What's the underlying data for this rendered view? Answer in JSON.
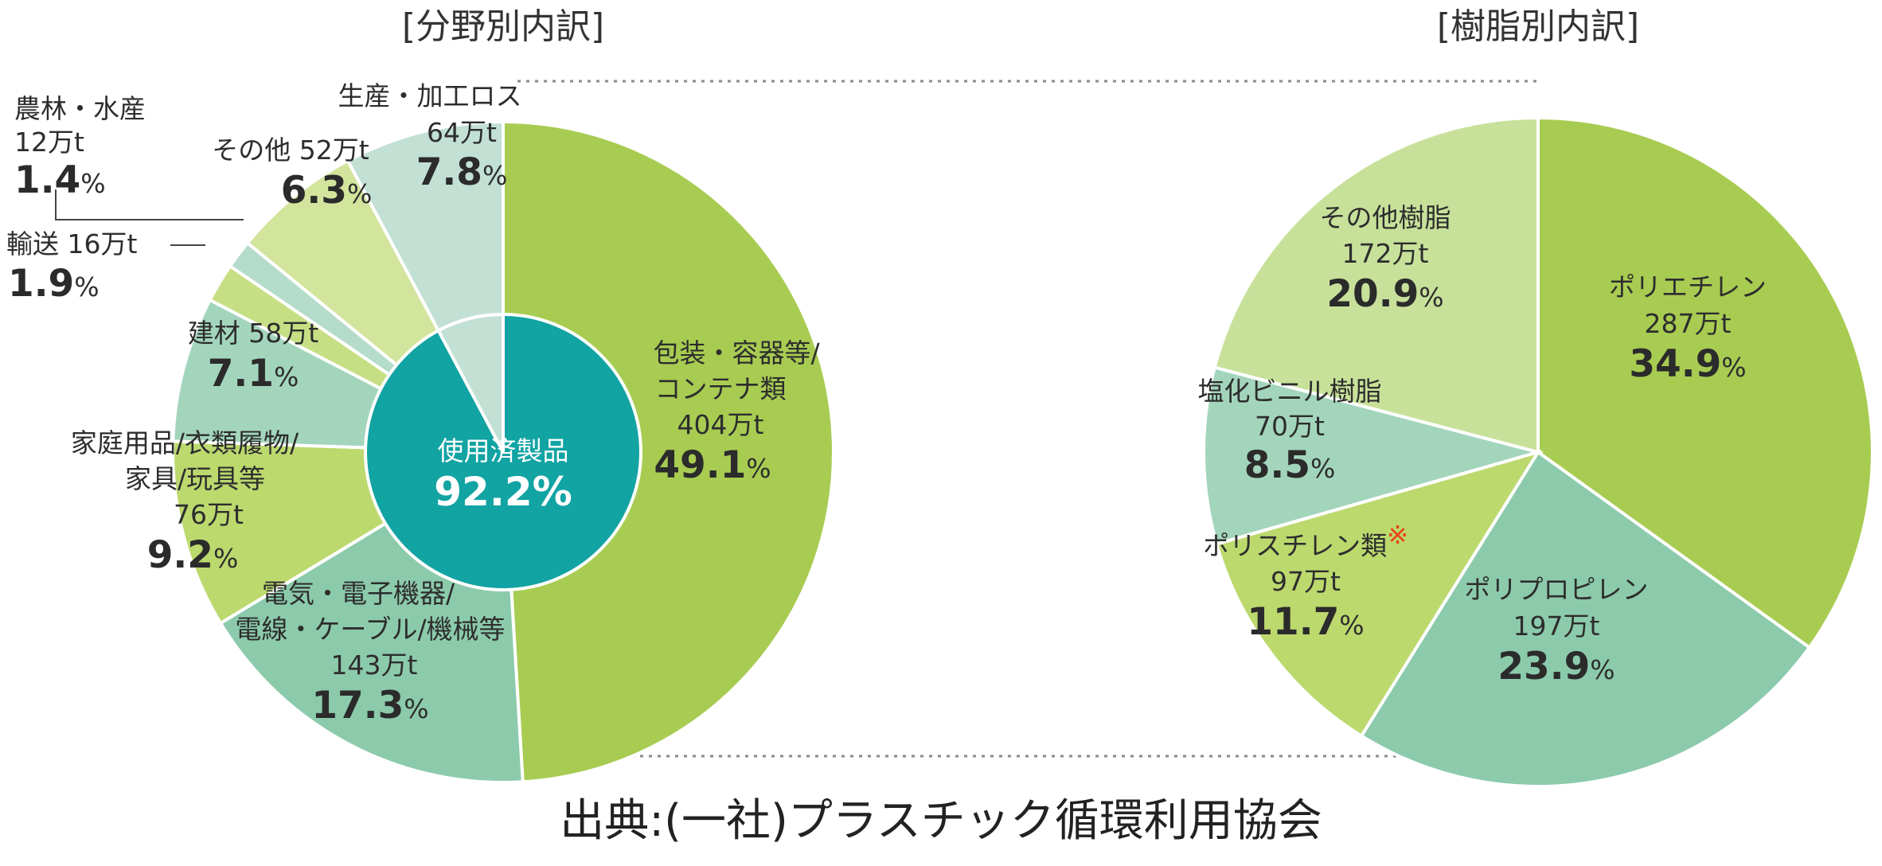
{
  "source": "出典:(一社)プラスチック循環利用協会",
  "chart_data": [
    {
      "type": "pie",
      "title": "[分野別内訳]",
      "center": {
        "label": "使用済製品",
        "value": "92.2%"
      },
      "unit": "万t",
      "slices": [
        {
          "name": "包装・容器等/コンテナ類",
          "amount": "404万t",
          "percent": "49.1%",
          "value": 49.1,
          "color": "#a8cc52"
        },
        {
          "name": "電気・電子機器/電線・ケーブル/機械等",
          "amount": "143万t",
          "percent": "17.3%",
          "value": 17.3,
          "color": "#8ccaac"
        },
        {
          "name": "家庭用品/衣類履物/家具/玩具等",
          "amount": "76万t",
          "percent": "9.2%",
          "value": 9.2,
          "color": "#bcd96e"
        },
        {
          "name": "建材",
          "amount": "58万t",
          "percent": "7.1%",
          "value": 7.1,
          "color": "#a3d5bd"
        },
        {
          "name": "輸送",
          "amount": "16万t",
          "percent": "1.9%",
          "value": 1.9,
          "color": "#c6df84"
        },
        {
          "name": "農林・水産",
          "amount": "12万t",
          "percent": "1.4%",
          "value": 1.4,
          "color": "#b5dccb"
        },
        {
          "name": "その他",
          "amount": "52万t",
          "percent": "6.3%",
          "value": 6.3,
          "color": "#d3e49d"
        },
        {
          "name": "生産・加工ロス",
          "amount": "64万t",
          "percent": "7.8%",
          "value": 7.8,
          "color": "#c2e0d4"
        }
      ],
      "labels": {
        "packaging": {
          "lines": [
            "包装・容器等/",
            "コンテナ類"
          ],
          "amount": "404万t",
          "percent": "49.1",
          "pct_sign": "%"
        },
        "electric": {
          "lines": [
            "電気・電子機器/",
            "電線・ケーブル/機械等"
          ],
          "amount": "143万t",
          "percent": "17.3",
          "pct_sign": "%"
        },
        "household": {
          "lines": [
            "家庭用品/衣類履物/",
            "家具/玩具等"
          ],
          "amount": "76万t",
          "percent": "9.2",
          "pct_sign": "%"
        },
        "building": {
          "line": "建材 58万t",
          "percent": "7.1",
          "pct_sign": "%"
        },
        "transport": {
          "line": "輸送 16万t",
          "percent": "1.9",
          "pct_sign": "%"
        },
        "agri": {
          "line": "農林・水産",
          "amount": "12万t",
          "percent": "1.4",
          "pct_sign": "%"
        },
        "other": {
          "line": "その他 52万t",
          "percent": "6.3",
          "pct_sign": "%"
        },
        "loss": {
          "line": "生産・加工ロス",
          "amount": "64万t",
          "percent": "7.8",
          "pct_sign": "%"
        }
      }
    },
    {
      "type": "pie",
      "title": "[樹脂別内訳]",
      "unit": "万t",
      "slices": [
        {
          "name": "ポリエチレン",
          "amount": "287万t",
          "percent": "34.9%",
          "value": 34.9,
          "color": "#a8cc52"
        },
        {
          "name": "ポリプロピレン",
          "amount": "197万t",
          "percent": "23.9%",
          "value": 23.9,
          "color": "#8ccaac"
        },
        {
          "name": "ポリスチレン類",
          "amount": "97万t",
          "percent": "11.7%",
          "value": 11.7,
          "color": "#bcd96e",
          "note_mark": "※"
        },
        {
          "name": "塩化ビニル樹脂",
          "amount": "70万t",
          "percent": "8.5%",
          "value": 8.5,
          "color": "#a3d5bd"
        },
        {
          "name": "その他樹脂",
          "amount": "172万t",
          "percent": "20.9%",
          "value": 20.9,
          "color": "#c8e19a"
        }
      ],
      "labels": {
        "pe": {
          "line": "ポリエチレン",
          "amount": "287万t",
          "percent": "34.9",
          "pct_sign": "%"
        },
        "pp": {
          "line": "ポリプロピレン",
          "amount": "197万t",
          "percent": "23.9",
          "pct_sign": "%"
        },
        "ps": {
          "line": "ポリスチレン類",
          "mark": "※",
          "amount": "97万t",
          "percent": "11.7",
          "pct_sign": "%"
        },
        "pvc": {
          "line": "塩化ビニル樹脂",
          "amount": "70万t",
          "percent": "8.5",
          "pct_sign": "%"
        },
        "other": {
          "line": "その他樹脂",
          "amount": "172万t",
          "percent": "20.9",
          "pct_sign": "%"
        }
      }
    }
  ],
  "center_color": "#12a3a3",
  "dotted_line_color": "#8a8a8a"
}
